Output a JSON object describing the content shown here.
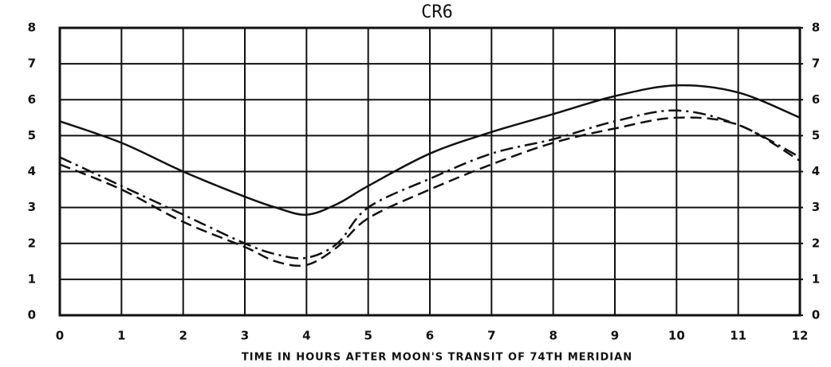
{
  "chart_data": {
    "type": "line",
    "title": "CR6",
    "x_label": "TIME IN HOURS AFTER MOON'S TRANSIT OF 74TH MERIDIAN",
    "x": [
      0,
      1,
      2,
      3,
      3.5,
      4,
      4.5,
      5,
      6,
      7,
      8,
      9,
      10,
      11,
      12
    ],
    "series": [
      {
        "color": "#111111",
        "dash": "solid",
        "values": [
          5.4,
          4.8,
          4.0,
          3.3,
          3.0,
          2.8,
          3.1,
          3.6,
          4.5,
          5.1,
          5.6,
          6.1,
          6.4,
          6.2,
          5.5
        ]
      },
      {
        "color": "#111111",
        "dash": "dashdot",
        "values": [
          4.4,
          3.6,
          2.8,
          2.0,
          1.7,
          1.6,
          2.0,
          3.0,
          3.8,
          4.5,
          4.9,
          5.4,
          5.7,
          5.3,
          4.4
        ]
      },
      {
        "color": "#111111",
        "dash": "dashed",
        "values": [
          4.2,
          3.5,
          2.6,
          1.9,
          1.5,
          1.4,
          1.9,
          2.7,
          3.5,
          4.2,
          4.8,
          5.2,
          5.5,
          5.3,
          4.3
        ]
      }
    ],
    "xlim": [
      0,
      12
    ],
    "xticks": [
      0,
      1,
      2,
      3,
      4,
      5,
      6,
      7,
      8,
      9,
      10,
      11,
      12
    ],
    "ylim": [
      0,
      8
    ],
    "yticks": [
      0,
      1,
      2,
      3,
      4,
      5,
      6,
      7,
      8
    ],
    "y2lim": [
      0,
      8
    ],
    "y2ticks": [
      0,
      1,
      2,
      3,
      4,
      5,
      6,
      7,
      8
    ],
    "grid": true
  }
}
